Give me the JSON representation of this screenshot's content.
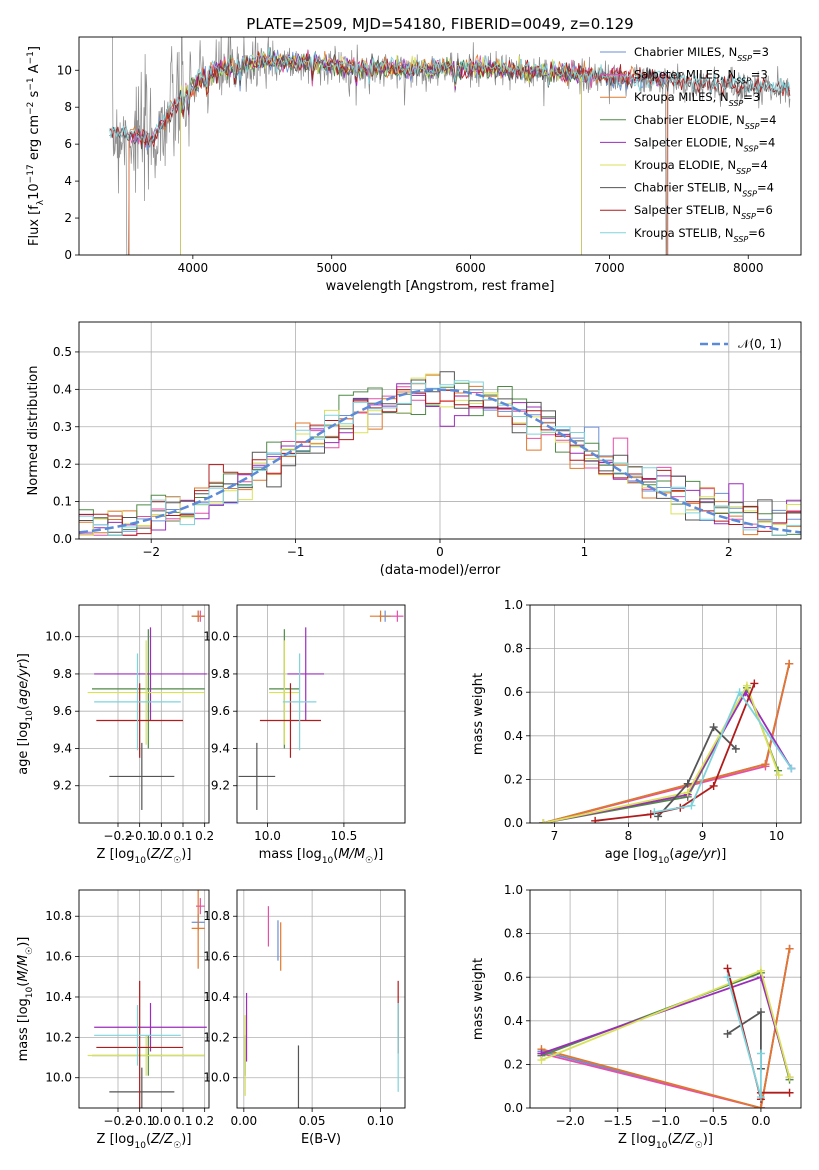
{
  "figure": {
    "title": "PLATE=2509, MJD=54180, FIBERID=0049, z=0.129"
  },
  "colors": {
    "Chabrier MILES": "#6a8fd6",
    "Salpeter MILES": "#e64fa8",
    "Kroupa MILES": "#e0782c",
    "Chabrier ELODIE": "#4e8a46",
    "Salpeter ELODIE": "#9b2dbb",
    "Kroupa ELODIE": "#d9e15a",
    "Chabrier STELIB": "#555555",
    "Salpeter STELIB": "#b01c1c",
    "Kroupa STELIB": "#7fd3dc",
    "data": "#8a8a8a",
    "normal": "#5b8ad8"
  },
  "chart_data": [
    {
      "id": "spectrum",
      "type": "line",
      "xlabel": "wavelength [Angstrom, rest frame]",
      "ylabel": "Flux [f_λ 10^-17 erg cm^-2 s^-1 A^-1]",
      "xlim": [
        3180,
        8380
      ],
      "ylim": [
        0,
        11.8
      ],
      "xticks": [
        4000,
        5000,
        6000,
        7000,
        8000
      ],
      "yticks": [
        0,
        2,
        4,
        6,
        8,
        10
      ],
      "legend_position": "top-right",
      "continuum_x": [
        3500,
        3700,
        3950,
        4150,
        4500,
        4900,
        5200,
        5600,
        6000,
        6500,
        7000,
        7400,
        7800,
        8200
      ],
      "continuum_y": [
        6.6,
        6.1,
        8.9,
        9.9,
        10.5,
        10.3,
        10.1,
        10.0,
        10.1,
        9.9,
        9.6,
        9.4,
        9.2,
        9.0
      ],
      "series": [
        {
          "name": "Chabrier MILES",
          "nssp": "3",
          "x_range": [
            3540,
            7420
          ]
        },
        {
          "name": "Salpeter MILES",
          "nssp": "3",
          "x_range": [
            3540,
            7420
          ]
        },
        {
          "name": "Kroupa MILES",
          "nssp": "3",
          "x_range": [
            3540,
            7420
          ]
        },
        {
          "name": "Chabrier ELODIE",
          "nssp": "4",
          "x_range": [
            3910,
            6800
          ]
        },
        {
          "name": "Salpeter ELODIE",
          "nssp": "4",
          "x_range": [
            3910,
            6800
          ]
        },
        {
          "name": "Kroupa ELODIE",
          "nssp": "4",
          "x_range": [
            3910,
            6800
          ]
        },
        {
          "name": "Chabrier STELIB",
          "nssp": "4",
          "x_range": [
            3400,
            8300
          ]
        },
        {
          "name": "Salpeter STELIB",
          "nssp": "6",
          "x_range": [
            3400,
            8300
          ]
        },
        {
          "name": "Kroupa STELIB",
          "nssp": "6",
          "x_range": [
            3400,
            8300
          ]
        }
      ]
    },
    {
      "id": "residuals",
      "type": "line",
      "xlabel": "(data-model)/error",
      "ylabel": "Normed distribution",
      "xlim": [
        -2.5,
        2.5
      ],
      "ylim": [
        0,
        0.58
      ],
      "xticks": [
        -2,
        -1,
        0,
        1,
        2
      ],
      "xtick_labels": [
        "−2",
        "−1",
        "0",
        "1",
        "2"
      ],
      "yticks": [
        0.0,
        0.1,
        0.2,
        0.3,
        0.4,
        0.5
      ],
      "ytick_labels": [
        "0.0",
        "0.1",
        "0.2",
        "0.3",
        "0.4",
        "0.5"
      ],
      "grid": true,
      "legend": "𝒩(0, 1)",
      "legend_position": "top-right",
      "bin_width": 0.1,
      "reference_curve": "normal(0,1)"
    },
    {
      "id": "age_vs_Z",
      "type": "scatter",
      "xlabel": "Z [log10(Z/Z☉)]",
      "ylabel": "age [log10(age/yr)]",
      "xlim": [
        -0.38,
        0.22
      ],
      "ylim": [
        9.0,
        10.17
      ],
      "xticks": [
        -0.2,
        -0.1,
        0.0,
        0.1,
        0.2
      ],
      "xtick_labels": [
        "−0.2",
        "−0.1",
        "0.0",
        "0.1",
        "0.2"
      ],
      "yticks": [
        9.2,
        9.4,
        9.6,
        9.8,
        10.0
      ],
      "ytick_labels": [
        "9.2",
        "9.4",
        "9.6",
        "9.8",
        "10.0"
      ],
      "grid": true,
      "points": [
        {
          "s": "Chabrier MILES",
          "x": 0.17,
          "y": 10.11,
          "xe": 0.03,
          "ye": 0.03
        },
        {
          "s": "Salpeter MILES",
          "x": 0.18,
          "y": 10.11,
          "xe": 0.02,
          "ye": 0.03
        },
        {
          "s": "Kroupa MILES",
          "x": 0.17,
          "y": 10.11,
          "xe": 0.03,
          "ye": 0.03
        },
        {
          "s": "Chabrier ELODIE",
          "x": -0.06,
          "y": 9.72,
          "xe": 0.26,
          "ye": 0.32
        },
        {
          "s": "Salpeter ELODIE",
          "x": -0.05,
          "y": 9.8,
          "xe": 0.26,
          "ye": 0.25
        },
        {
          "s": "Kroupa ELODIE",
          "x": -0.07,
          "y": 9.7,
          "xe": 0.27,
          "ye": 0.28
        },
        {
          "s": "Chabrier STELIB",
          "x": -0.09,
          "y": 9.25,
          "xe": 0.15,
          "ye": 0.18
        },
        {
          "s": "Salpeter STELIB",
          "x": -0.1,
          "y": 9.55,
          "xe": 0.2,
          "ye": 0.2
        },
        {
          "s": "Kroupa STELIB",
          "x": -0.11,
          "y": 9.65,
          "xe": 0.2,
          "ye": 0.26
        }
      ]
    },
    {
      "id": "age_vs_mass",
      "type": "scatter",
      "xlabel": "mass [log10(M/M☉)]",
      "ylabel": "",
      "xlim": [
        9.8,
        10.9
      ],
      "ylim": [
        9.0,
        10.17
      ],
      "xticks": [
        10.0,
        10.5
      ],
      "xtick_labels": [
        "10.0",
        "10.5"
      ],
      "yticks": [
        9.2,
        9.4,
        9.6,
        9.8,
        10.0
      ],
      "ytick_labels": [
        "9.2",
        "9.4",
        "9.6",
        "9.8",
        "10.0"
      ],
      "grid": true,
      "points": [
        {
          "s": "Chabrier MILES",
          "x": 10.77,
          "y": 10.11,
          "xe": 0.04,
          "ye": 0.03
        },
        {
          "s": "Salpeter MILES",
          "x": 10.85,
          "y": 10.11,
          "xe": 0.04,
          "ye": 0.03
        },
        {
          "s": "Kroupa MILES",
          "x": 10.74,
          "y": 10.11,
          "xe": 0.07,
          "ye": 0.03
        },
        {
          "s": "Chabrier ELODIE",
          "x": 10.11,
          "y": 9.72,
          "xe": 0.1,
          "ye": 0.32
        },
        {
          "s": "Salpeter ELODIE",
          "x": 10.25,
          "y": 9.8,
          "xe": 0.12,
          "ye": 0.25
        },
        {
          "s": "Kroupa ELODIE",
          "x": 10.11,
          "y": 9.7,
          "xe": 0.1,
          "ye": 0.28
        },
        {
          "s": "Chabrier STELIB",
          "x": 9.93,
          "y": 9.25,
          "xe": 0.12,
          "ye": 0.18
        },
        {
          "s": "Salpeter STELIB",
          "x": 10.15,
          "y": 9.55,
          "xe": 0.2,
          "ye": 0.2
        },
        {
          "s": "Kroupa STELIB",
          "x": 10.21,
          "y": 9.65,
          "xe": 0.11,
          "ye": 0.26
        }
      ]
    },
    {
      "id": "weight_vs_age",
      "type": "line",
      "xlabel": "age [log10(age/yr)]",
      "ylabel": "mass weight",
      "xlim": [
        6.67,
        10.33
      ],
      "ylim": [
        0,
        1
      ],
      "xticks": [
        7,
        8,
        9,
        10
      ],
      "xtick_labels": [
        "7",
        "8",
        "9",
        "10"
      ],
      "yticks": [
        0.0,
        0.2,
        0.4,
        0.6,
        0.8,
        1.0
      ],
      "ytick_labels": [
        "0.0",
        "0.2",
        "0.4",
        "0.6",
        "0.8",
        "1.0"
      ],
      "grid": true,
      "series": [
        {
          "name": "Chabrier MILES",
          "x": [
            6.85,
            9.85,
            10.17
          ],
          "y": [
            0.0,
            0.27,
            0.73
          ]
        },
        {
          "name": "Salpeter MILES",
          "x": [
            6.85,
            9.85,
            10.17
          ],
          "y": [
            0.0,
            0.26,
            0.73
          ]
        },
        {
          "name": "Kroupa MILES",
          "x": [
            6.85,
            9.85,
            10.17
          ],
          "y": [
            0.0,
            0.27,
            0.73
          ]
        },
        {
          "name": "Chabrier ELODIE",
          "x": [
            6.85,
            8.8,
            9.6,
            10.02
          ],
          "y": [
            0.0,
            0.12,
            0.62,
            0.24
          ]
        },
        {
          "name": "Salpeter ELODIE",
          "x": [
            6.85,
            8.8,
            9.58,
            10.2
          ],
          "y": [
            0.0,
            0.13,
            0.6,
            0.25
          ]
        },
        {
          "name": "Kroupa ELODIE",
          "x": [
            6.85,
            8.8,
            9.6,
            10.03
          ],
          "y": [
            0.0,
            0.14,
            0.63,
            0.22
          ]
        },
        {
          "name": "Chabrier STELIB",
          "x": [
            8.4,
            8.8,
            9.15,
            9.45
          ],
          "y": [
            0.03,
            0.18,
            0.44,
            0.34
          ]
        },
        {
          "name": "Salpeter STELIB",
          "x": [
            7.55,
            8.3,
            8.7,
            9.15,
            9.7
          ],
          "y": [
            0.01,
            0.04,
            0.07,
            0.17,
            0.64
          ]
        },
        {
          "name": "Kroupa STELIB",
          "x": [
            8.35,
            8.85,
            9.5,
            10.2
          ],
          "y": [
            0.05,
            0.08,
            0.6,
            0.25
          ]
        }
      ]
    },
    {
      "id": "mass_vs_Z",
      "type": "scatter",
      "xlabel": "Z [log10(Z/Z☉)]",
      "ylabel": "mass [log10(M/M☉)]",
      "xlim": [
        -0.38,
        0.22
      ],
      "ylim": [
        9.85,
        10.93
      ],
      "xticks": [
        -0.2,
        -0.1,
        0.0,
        0.1,
        0.2
      ],
      "xtick_labels": [
        "−0.2",
        "−0.1",
        "0.0",
        "0.1",
        "0.2"
      ],
      "yticks": [
        10.0,
        10.2,
        10.4,
        10.6,
        10.8
      ],
      "ytick_labels": [
        "10.0",
        "10.2",
        "10.4",
        "10.6",
        "10.8"
      ],
      "grid": true,
      "points": [
        {
          "s": "Chabrier MILES",
          "x": 0.17,
          "y": 10.77,
          "xe": 0.03,
          "ye": 0.04
        },
        {
          "s": "Salpeter MILES",
          "x": 0.18,
          "y": 10.85,
          "xe": 0.02,
          "ye": 0.04
        },
        {
          "s": "Kroupa MILES",
          "x": 0.17,
          "y": 10.74,
          "xe": 0.03,
          "ye": 0.2
        },
        {
          "s": "Chabrier ELODIE",
          "x": -0.06,
          "y": 10.11,
          "xe": 0.26,
          "ye": 0.1
        },
        {
          "s": "Salpeter ELODIE",
          "x": -0.05,
          "y": 10.25,
          "xe": 0.26,
          "ye": 0.12
        },
        {
          "s": "Kroupa ELODIE",
          "x": -0.07,
          "y": 10.11,
          "xe": 0.27,
          "ye": 0.1
        },
        {
          "s": "Chabrier STELIB",
          "x": -0.09,
          "y": 9.93,
          "xe": 0.15,
          "ye": 0.12
        },
        {
          "s": "Salpeter STELIB",
          "x": -0.1,
          "y": 10.15,
          "xe": 0.2,
          "ye": 0.33
        },
        {
          "s": "Kroupa STELIB",
          "x": -0.11,
          "y": 10.21,
          "xe": 0.2,
          "ye": 0.15
        }
      ]
    },
    {
      "id": "mass_vs_ebv",
      "type": "scatter",
      "xlabel": "E(B-V)",
      "ylabel": "",
      "xlim": [
        -0.005,
        0.118
      ],
      "ylim": [
        9.85,
        10.93
      ],
      "xticks": [
        0.0,
        0.05,
        0.1
      ],
      "xtick_labels": [
        "0.00",
        "0.05",
        "0.10"
      ],
      "yticks": [
        10.0,
        10.2,
        10.4,
        10.6,
        10.8
      ],
      "ytick_labels": [
        "10.0",
        "10.2",
        "10.4",
        "10.6",
        "10.8"
      ],
      "grid": true,
      "points": [
        {
          "s": "Chabrier MILES",
          "x": 0.025,
          "y": 10.68,
          "xe": 0.0,
          "ye": 0.1
        },
        {
          "s": "Salpeter MILES",
          "x": 0.018,
          "y": 10.75,
          "xe": 0.0,
          "ye": 0.1
        },
        {
          "s": "Kroupa MILES",
          "x": 0.027,
          "y": 10.65,
          "xe": 0.0,
          "ye": 0.12
        },
        {
          "s": "Chabrier ELODIE",
          "x": 0.001,
          "y": 10.11,
          "xe": 0.0,
          "ye": 0.1
        },
        {
          "s": "Salpeter ELODIE",
          "x": 0.002,
          "y": 10.25,
          "xe": 0.0,
          "ye": 0.17
        },
        {
          "s": "Kroupa ELODIE",
          "x": 0.001,
          "y": 10.11,
          "xe": 0.0,
          "ye": 0.2
        },
        {
          "s": "Chabrier STELIB",
          "x": 0.04,
          "y": 10.0,
          "xe": 0.0,
          "ye": 0.16
        },
        {
          "s": "Salpeter STELIB",
          "x": 0.113,
          "y": 10.3,
          "xe": 0.0,
          "ye": 0.18
        },
        {
          "s": "Kroupa STELIB",
          "x": 0.113,
          "y": 10.15,
          "xe": 0.0,
          "ye": 0.22
        }
      ]
    },
    {
      "id": "weight_vs_Z",
      "type": "line",
      "xlabel": "Z [log10(Z/Z☉)]",
      "ylabel": "mass weight",
      "xlim": [
        -2.42,
        0.42
      ],
      "ylim": [
        0,
        1
      ],
      "xticks": [
        -2.0,
        -1.5,
        -1.0,
        -0.5,
        0.0
      ],
      "xtick_labels": [
        "−2.0",
        "−1.5",
        "−1.0",
        "−0.5",
        "0.0"
      ],
      "yticks": [
        0.0,
        0.2,
        0.4,
        0.6,
        0.8,
        1.0
      ],
      "ytick_labels": [
        "0.0",
        "0.2",
        "0.4",
        "0.6",
        "0.8",
        "1.0"
      ],
      "grid": true,
      "series": [
        {
          "name": "Chabrier MILES",
          "x": [
            -2.3,
            0.0,
            0.3
          ],
          "y": [
            0.26,
            0.0,
            0.73
          ]
        },
        {
          "name": "Salpeter MILES",
          "x": [
            -2.3,
            0.0,
            0.3
          ],
          "y": [
            0.25,
            0.0,
            0.73
          ]
        },
        {
          "name": "Kroupa MILES",
          "x": [
            -2.3,
            0.0,
            0.3
          ],
          "y": [
            0.27,
            0.0,
            0.73
          ]
        },
        {
          "name": "Chabrier ELODIE",
          "x": [
            -2.3,
            0.0,
            0.3
          ],
          "y": [
            0.24,
            0.62,
            0.13
          ]
        },
        {
          "name": "Salpeter ELODIE",
          "x": [
            -2.3,
            0.0,
            0.3
          ],
          "y": [
            0.25,
            0.6,
            0.14
          ]
        },
        {
          "name": "Kroupa ELODIE",
          "x": [
            -2.3,
            0.0,
            0.3
          ],
          "y": [
            0.22,
            0.63,
            0.14
          ]
        },
        {
          "name": "Chabrier STELIB",
          "x": [
            -0.35,
            0.0,
            0.0
          ],
          "y": [
            0.34,
            0.44,
            0.18
          ]
        },
        {
          "name": "Salpeter STELIB",
          "x": [
            -0.35,
            0.0,
            0.0,
            0.3
          ],
          "y": [
            0.64,
            0.04,
            0.07,
            0.07
          ]
        },
        {
          "name": "Kroupa STELIB",
          "x": [
            -0.35,
            0.0,
            0.0
          ],
          "y": [
            0.6,
            0.05,
            0.25
          ]
        }
      ]
    }
  ]
}
